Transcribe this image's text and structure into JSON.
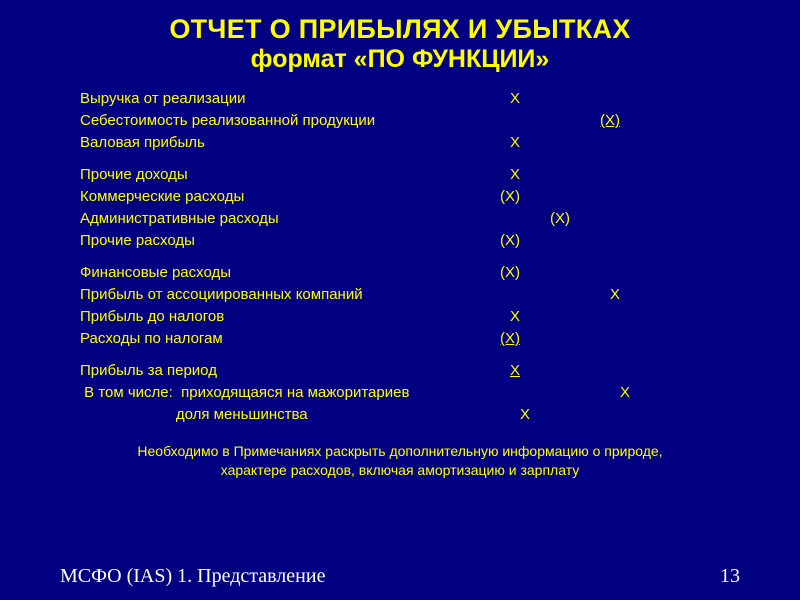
{
  "colors": {
    "background": "#000080",
    "text": "#ffff00",
    "footer_text": "#ffffff"
  },
  "typography": {
    "title_fontsize_line1": 27,
    "title_fontsize_line2": 25,
    "body_fontsize": 15,
    "note_fontsize": 14,
    "footer_fontsize": 20,
    "title_weight": "bold",
    "body_font": "Arial",
    "footer_font": "Times New Roman"
  },
  "title": {
    "line1": "ОТЧЕТ О ПРИБЫЛЯХ И УБЫТКАХ",
    "line2": "формат «ПО ФУНКЦИИ»"
  },
  "groups": [
    {
      "rows": [
        {
          "label": "Выручка от реализации",
          "value": "X",
          "value_pad": 340,
          "underline": false
        },
        {
          "label": "Себестоимость реализованной продукции",
          "value": "(X)",
          "value_pad": 430,
          "underline": true
        },
        {
          "label": "Валовая прибыль",
          "value": "X",
          "value_pad": 340,
          "underline": false
        }
      ]
    },
    {
      "rows": [
        {
          "label": "Прочие доходы",
          "value": "X",
          "value_pad": 340,
          "underline": false
        },
        {
          "label": "Коммерческие расходы",
          "value": "(X)",
          "value_pad": 330,
          "underline": false
        },
        {
          "label": "Административные расходы",
          "value": "(X)",
          "value_pad": 380,
          "underline": false
        },
        {
          "label": "Прочие расходы",
          "value": "(X)",
          "value_pad": 330,
          "underline": false
        }
      ]
    },
    {
      "rows": [
        {
          "label": "Финансовые расходы",
          "value": "(X)",
          "value_pad": 330,
          "underline": false
        },
        {
          "label": "Прибыль от ассоциированных компаний",
          "value": "X",
          "value_pad": 440,
          "underline": false
        },
        {
          "label": "Прибыль до налогов",
          "value": "X",
          "value_pad": 340,
          "underline": false
        },
        {
          "label": "Расходы по налогам",
          "value": "(X)",
          "value_pad": 330,
          "underline": true
        }
      ]
    },
    {
      "rows": [
        {
          "label": "Прибыль за период",
          "value": "X",
          "value_pad": 340,
          "underline": true
        },
        {
          "label": " В том числе:  приходящаяся на мажоритариев",
          "value": "X",
          "value_pad": 450,
          "underline": false
        },
        {
          "label": "                       доля меньшинства",
          "value": "X",
          "value_pad": 350,
          "underline": false
        }
      ]
    }
  ],
  "note": {
    "line1": "Необходимо в Примечаниях раскрыть дополнительную информацию о природе,",
    "line2": "характере расходов, включая амортизацию и зарплату"
  },
  "footer": {
    "text": "МСФО (IAS) 1. Представление",
    "page": "13"
  }
}
